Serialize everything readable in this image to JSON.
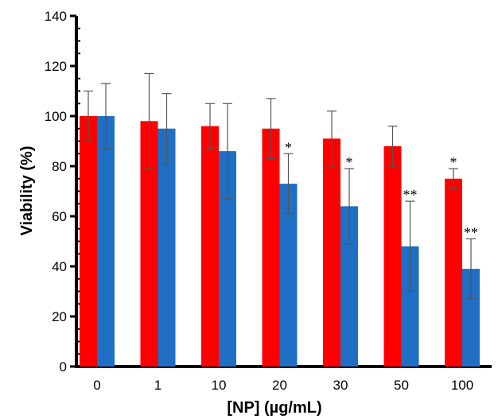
{
  "chart_data": {
    "type": "bar",
    "title": "",
    "xlabel": "[NP] (µg/mL)",
    "ylabel": "Viability (%)",
    "ylim": [
      0,
      140
    ],
    "yticks": [
      0,
      20,
      40,
      60,
      80,
      100,
      120,
      140
    ],
    "grid": false,
    "legend": "none",
    "categories": [
      "0",
      "1",
      "10",
      "20",
      "30",
      "50",
      "100"
    ],
    "series": [
      {
        "color": "#ff0000",
        "values": [
          100,
          98,
          96,
          95,
          91,
          88,
          75
        ],
        "errors": [
          10,
          19,
          9,
          12,
          11,
          8,
          4
        ],
        "significance": [
          "",
          "",
          "",
          "",
          "",
          "",
          "*"
        ]
      },
      {
        "color": "#1f6fc4",
        "values": [
          100,
          95,
          86,
          73,
          64,
          48,
          39
        ],
        "errors": [
          13,
          14,
          19,
          12,
          15,
          18,
          12
        ],
        "significance": [
          "",
          "",
          "",
          "*",
          "*",
          "**",
          "**"
        ]
      }
    ]
  }
}
